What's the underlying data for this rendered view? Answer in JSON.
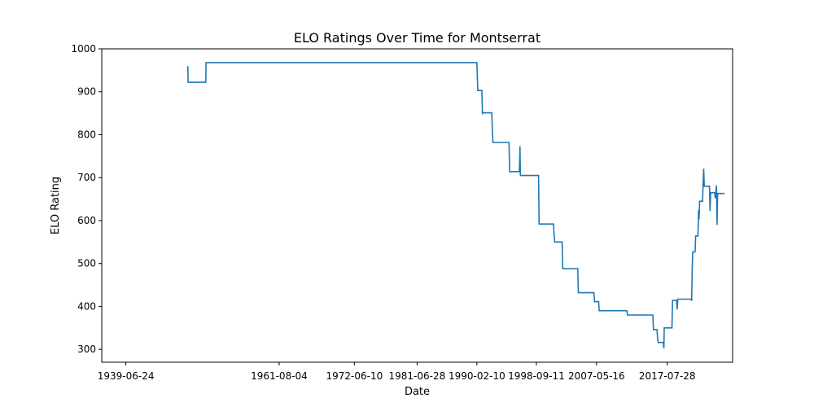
{
  "chart_data": {
    "type": "line",
    "title": "ELO Ratings Over Time for Montserrat",
    "xlabel": "Date",
    "ylabel": "ELO Rating",
    "ylim": [
      270,
      1000
    ],
    "xlim": [
      "1936-01-01",
      "2026-12-31"
    ],
    "x_ticks": [
      "1939-06-24",
      "1961-08-04",
      "1972-06-10",
      "1981-06-28",
      "1990-02-10",
      "1998-09-11",
      "2007-05-16",
      "2017-07-28"
    ],
    "y_ticks": [
      300,
      400,
      500,
      600,
      700,
      800,
      900,
      1000
    ],
    "grid": false,
    "series": [
      {
        "color": "#1f77b4",
        "points": [
          [
            "1948-06-01",
            960
          ],
          [
            "1948-06-15",
            922
          ],
          [
            "1951-01-01",
            922
          ],
          [
            "1951-01-15",
            968
          ],
          [
            "1990-02-10",
            968
          ],
          [
            "1990-04-01",
            903
          ],
          [
            "1990-11-01",
            903
          ],
          [
            "1990-12-01",
            848
          ],
          [
            "1991-01-01",
            851
          ],
          [
            "1992-04-01",
            851
          ],
          [
            "1992-06-01",
            782
          ],
          [
            "1994-10-01",
            782
          ],
          [
            "1994-11-01",
            714
          ],
          [
            "1996-04-01",
            714
          ],
          [
            "1996-05-01",
            773
          ],
          [
            "1996-05-20",
            705
          ],
          [
            "1999-01-01",
            705
          ],
          [
            "1999-02-01",
            592
          ],
          [
            "1999-06-01",
            592
          ],
          [
            "2001-03-01",
            592
          ],
          [
            "2001-04-01",
            567
          ],
          [
            "2001-05-01",
            550
          ],
          [
            "2002-06-01",
            550
          ],
          [
            "2002-07-01",
            488
          ],
          [
            "2004-09-01",
            488
          ],
          [
            "2004-10-01",
            432
          ],
          [
            "2007-01-01",
            432
          ],
          [
            "2007-02-01",
            411
          ],
          [
            "2007-09-01",
            411
          ],
          [
            "2007-10-01",
            390
          ],
          [
            "2011-10-01",
            390
          ],
          [
            "2011-11-01",
            380
          ],
          [
            "2015-07-01",
            380
          ],
          [
            "2015-08-01",
            346
          ],
          [
            "2016-02-01",
            346
          ],
          [
            "2016-03-01",
            330
          ],
          [
            "2016-04-01",
            316
          ],
          [
            "2017-01-01",
            316
          ],
          [
            "2017-02-01",
            302
          ],
          [
            "2017-02-20",
            350
          ],
          [
            "2018-04-01",
            350
          ],
          [
            "2018-05-01",
            414
          ],
          [
            "2018-12-01",
            414
          ],
          [
            "2019-01-01",
            393
          ],
          [
            "2019-02-01",
            417
          ],
          [
            "2021-01-01",
            417
          ],
          [
            "2021-02-01",
            413
          ],
          [
            "2021-03-01",
            480
          ],
          [
            "2021-04-01",
            527
          ],
          [
            "2021-08-01",
            527
          ],
          [
            "2021-09-01",
            564
          ],
          [
            "2022-01-01",
            564
          ],
          [
            "2022-02-01",
            624
          ],
          [
            "2022-03-01",
            603
          ],
          [
            "2022-04-01",
            645
          ],
          [
            "2022-09-01",
            645
          ],
          [
            "2022-10-01",
            690
          ],
          [
            "2022-11-01",
            721
          ],
          [
            "2022-12-01",
            680
          ],
          [
            "2023-09-01",
            680
          ],
          [
            "2023-10-01",
            622
          ],
          [
            "2023-11-01",
            665
          ],
          [
            "2024-06-01",
            665
          ],
          [
            "2024-07-01",
            652
          ],
          [
            "2024-08-01",
            662
          ],
          [
            "2024-09-01",
            682
          ],
          [
            "2024-10-01",
            590
          ],
          [
            "2024-11-01",
            663
          ],
          [
            "2025-11-01",
            663
          ]
        ]
      }
    ]
  }
}
